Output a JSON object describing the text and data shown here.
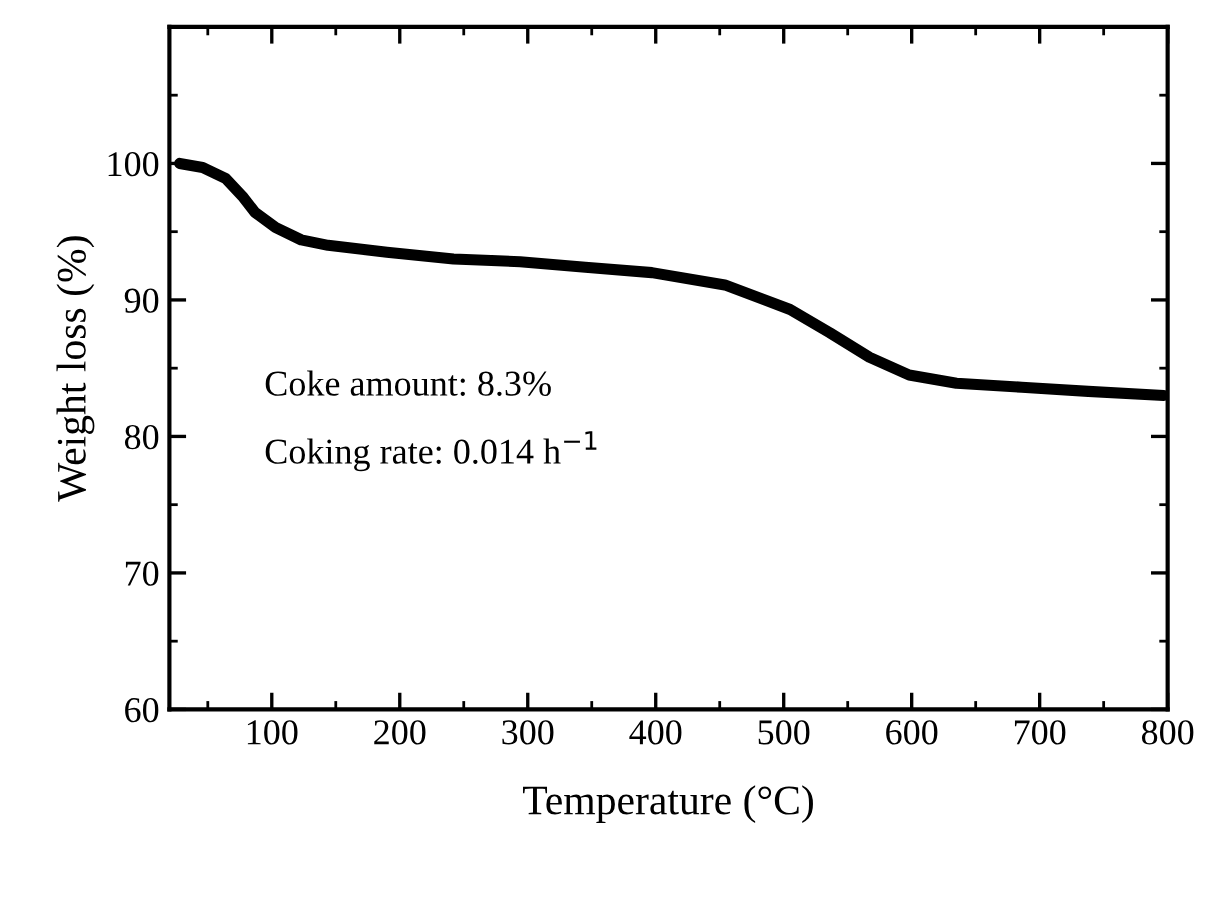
{
  "chart_data": {
    "type": "line",
    "xlabel": "Temperature (°C)",
    "ylabel": "Weight loss (%)",
    "xlim": [
      20,
      800
    ],
    "ylim": [
      60,
      110
    ],
    "xticks": [
      {
        "value": 50,
        "label": null
      },
      100,
      {
        "value": 150,
        "label": null
      },
      200,
      {
        "value": 250,
        "label": null
      },
      300,
      {
        "value": 350,
        "label": null
      },
      400,
      {
        "value": 450,
        "label": null
      },
      500,
      {
        "value": 550,
        "label": null
      },
      600,
      {
        "value": 650,
        "label": null
      },
      700,
      {
        "value": 750,
        "label": null
      },
      800
    ],
    "yticks": [
      60,
      {
        "value": 65,
        "label": null
      },
      70,
      {
        "value": 75,
        "label": null
      },
      80,
      {
        "value": 85,
        "label": null
      },
      90,
      {
        "value": 95,
        "label": null
      },
      100,
      {
        "value": 105,
        "label": null
      }
    ],
    "grid": false,
    "legend": false,
    "marker": "none",
    "line_style": "solid",
    "annotations": [
      "Coke amount: 8.3%",
      "Coking rate: 0.014 h$^{−1}$"
    ],
    "series": [
      {
        "color": "#000000",
        "x": [
          28,
          46,
          64,
          77,
          87,
          103,
          123,
          144,
          190,
          242,
          294,
          345,
          397,
          454,
          505,
          536,
          567,
          598,
          635,
          686,
          738,
          797
        ],
        "values": [
          100.0,
          99.7,
          98.9,
          97.6,
          96.4,
          95.3,
          94.4,
          94.0,
          93.5,
          93.0,
          92.8,
          92.4,
          92.0,
          91.1,
          89.3,
          87.6,
          85.8,
          84.5,
          83.9,
          83.6,
          83.3,
          83.0
        ]
      }
    ]
  }
}
